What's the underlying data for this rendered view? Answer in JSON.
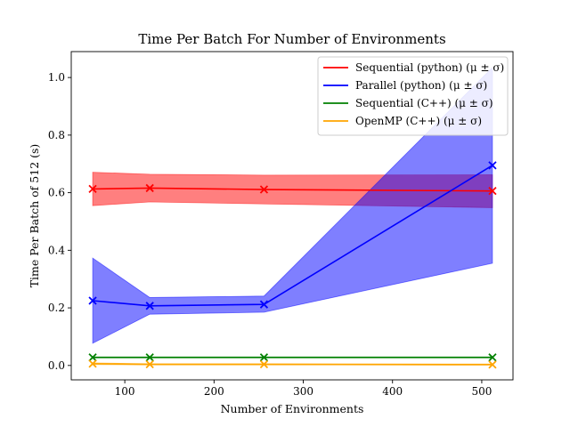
{
  "chart_data": {
    "type": "line",
    "title": "Time Per Batch For Number of Environments",
    "xlabel": "Number of Environments",
    "ylabel": "Time Per Batch of 512 (s)",
    "xlim": [
      40,
      535
    ],
    "ylim": [
      -0.05,
      1.09
    ],
    "xticks": [
      100,
      200,
      300,
      400,
      500
    ],
    "yticks": [
      0.0,
      0.2,
      0.4,
      0.6,
      0.8,
      1.0
    ],
    "xtick_labels": [
      "100",
      "200",
      "300",
      "400",
      "500"
    ],
    "ytick_labels": [
      "0.0",
      "0.2",
      "0.4",
      "0.6",
      "0.8",
      "1.0"
    ],
    "grid": false,
    "legend_position": "top-right",
    "x": [
      64,
      128,
      256,
      512
    ],
    "series": [
      {
        "name": "Sequential (python) (μ ± σ)",
        "color": "#ff0000",
        "values": [
          0.613,
          0.616,
          0.611,
          0.606
        ],
        "lower": [
          0.555,
          0.568,
          0.561,
          0.548
        ],
        "upper": [
          0.671,
          0.664,
          0.661,
          0.662
        ]
      },
      {
        "name": "Parallel (python) (μ ± σ)",
        "color": "#0000ff",
        "values": [
          0.225,
          0.207,
          0.212,
          0.695
        ],
        "lower": [
          0.077,
          0.178,
          0.185,
          0.355
        ],
        "upper": [
          0.373,
          0.236,
          0.241,
          1.035
        ]
      },
      {
        "name": "Sequential (C++) (μ ± σ)",
        "color": "#008000",
        "values": [
          0.028,
          0.028,
          0.028,
          0.028
        ],
        "lower": [
          0.026,
          0.026,
          0.026,
          0.026
        ],
        "upper": [
          0.03,
          0.03,
          0.03,
          0.03
        ]
      },
      {
        "name": "OpenMP (C++) (μ ± σ)",
        "color": "#ffa500",
        "values": [
          0.006,
          0.004,
          0.004,
          0.003
        ],
        "lower": [
          0.003,
          0.002,
          0.002,
          0.001
        ],
        "upper": [
          0.009,
          0.006,
          0.006,
          0.005
        ]
      }
    ]
  }
}
